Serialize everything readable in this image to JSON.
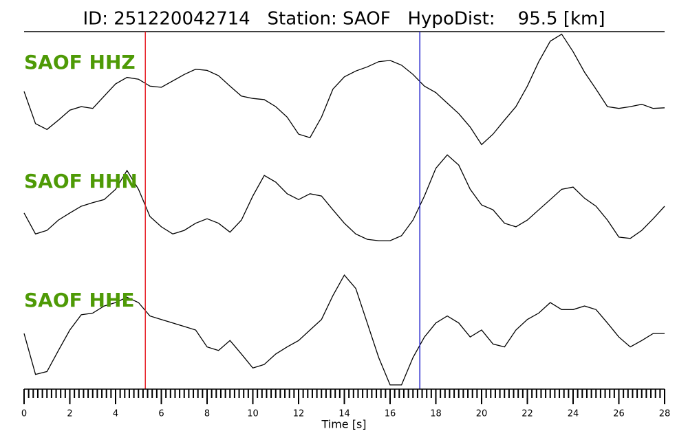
{
  "chart_data": {
    "type": "seismogram",
    "title": "ID: 251220042714   Station: SAOF   HypoDist:    95.5 [km]",
    "xlabel": "Time [s]",
    "xlim": [
      0,
      28
    ],
    "xticks": [
      0,
      2,
      4,
      6,
      8,
      10,
      12,
      14,
      16,
      18,
      20,
      22,
      24,
      26,
      28
    ],
    "xminor_step": 0.2,
    "label_color": "#4e9a06",
    "markers": [
      {
        "x": 5.3,
        "color": "#e8232a"
      },
      {
        "x": 17.3,
        "color": "#2222cc"
      }
    ],
    "x": [
      0,
      0.5,
      1,
      1.5,
      2,
      2.5,
      3,
      3.5,
      4,
      4.5,
      5,
      5.5,
      6,
      6.5,
      7,
      7.5,
      8,
      8.5,
      9,
      9.5,
      10,
      10.5,
      11,
      11.5,
      12,
      12.5,
      13,
      13.5,
      14,
      14.5,
      15,
      15.5,
      16,
      16.5,
      17,
      17.5,
      18,
      18.5,
      19,
      19.5,
      20,
      20.5,
      21,
      21.5,
      22,
      22.5,
      23,
      23.5,
      24,
      24.5,
      25,
      25.5,
      26,
      26.5,
      27,
      27.5,
      28
    ],
    "series": [
      {
        "name": "SAOF HHZ",
        "color": "#000000",
        "values": [
          0,
          -0.55,
          -0.65,
          -0.49,
          -0.32,
          -0.26,
          -0.29,
          -0.08,
          0.13,
          0.24,
          0.21,
          0.09,
          0.07,
          0.18,
          0.29,
          0.38,
          0.36,
          0.27,
          0.09,
          -0.08,
          -0.12,
          -0.14,
          -0.26,
          -0.44,
          -0.73,
          -0.79,
          -0.44,
          0.04,
          0.25,
          0.35,
          0.42,
          0.51,
          0.53,
          0.45,
          0.29,
          0.09,
          -0.02,
          -0.2,
          -0.38,
          -0.61,
          -0.91,
          -0.73,
          -0.49,
          -0.26,
          0.09,
          0.51,
          0.86,
          0.98,
          0.68,
          0.33,
          0.04,
          -0.26,
          -0.29,
          -0.26,
          -0.22,
          -0.29,
          -0.28
        ]
      },
      {
        "name": "SAOF HHN",
        "color": "#000000",
        "values": [
          -0.35,
          -0.82,
          -0.74,
          -0.51,
          -0.35,
          -0.2,
          -0.12,
          -0.05,
          0.18,
          0.6,
          0.18,
          -0.43,
          -0.66,
          -0.82,
          -0.74,
          -0.58,
          -0.48,
          -0.58,
          -0.78,
          -0.51,
          0.03,
          0.49,
          0.34,
          0.08,
          -0.05,
          0.08,
          0.03,
          -0.28,
          -0.58,
          -0.82,
          -0.94,
          -0.97,
          -0.97,
          -0.86,
          -0.51,
          0.03,
          0.65,
          0.95,
          0.72,
          0.18,
          -0.17,
          -0.28,
          -0.58,
          -0.66,
          -0.51,
          -0.28,
          -0.05,
          0.18,
          0.23,
          -0.02,
          -0.2,
          -0.51,
          -0.89,
          -0.92,
          -0.74,
          -0.48,
          -0.2
        ]
      },
      {
        "name": "SAOF HHE",
        "color": "#000000",
        "values": [
          -0.06,
          -0.76,
          -0.71,
          -0.35,
          0,
          0.26,
          0.29,
          0.41,
          0.47,
          0.56,
          0.47,
          0.24,
          0.18,
          0.12,
          0.06,
          0,
          -0.29,
          -0.35,
          -0.18,
          -0.41,
          -0.65,
          -0.59,
          -0.41,
          -0.29,
          -0.18,
          0,
          0.18,
          0.59,
          0.94,
          0.71,
          0.12,
          -0.47,
          -0.94,
          -0.94,
          -0.47,
          -0.12,
          0.12,
          0.24,
          0.12,
          -0.12,
          0,
          -0.24,
          -0.29,
          0,
          0.18,
          0.29,
          0.47,
          0.35,
          0.35,
          0.41,
          0.35,
          0.12,
          -0.12,
          -0.29,
          -0.18,
          -0.06,
          -0.06
        ]
      }
    ]
  }
}
